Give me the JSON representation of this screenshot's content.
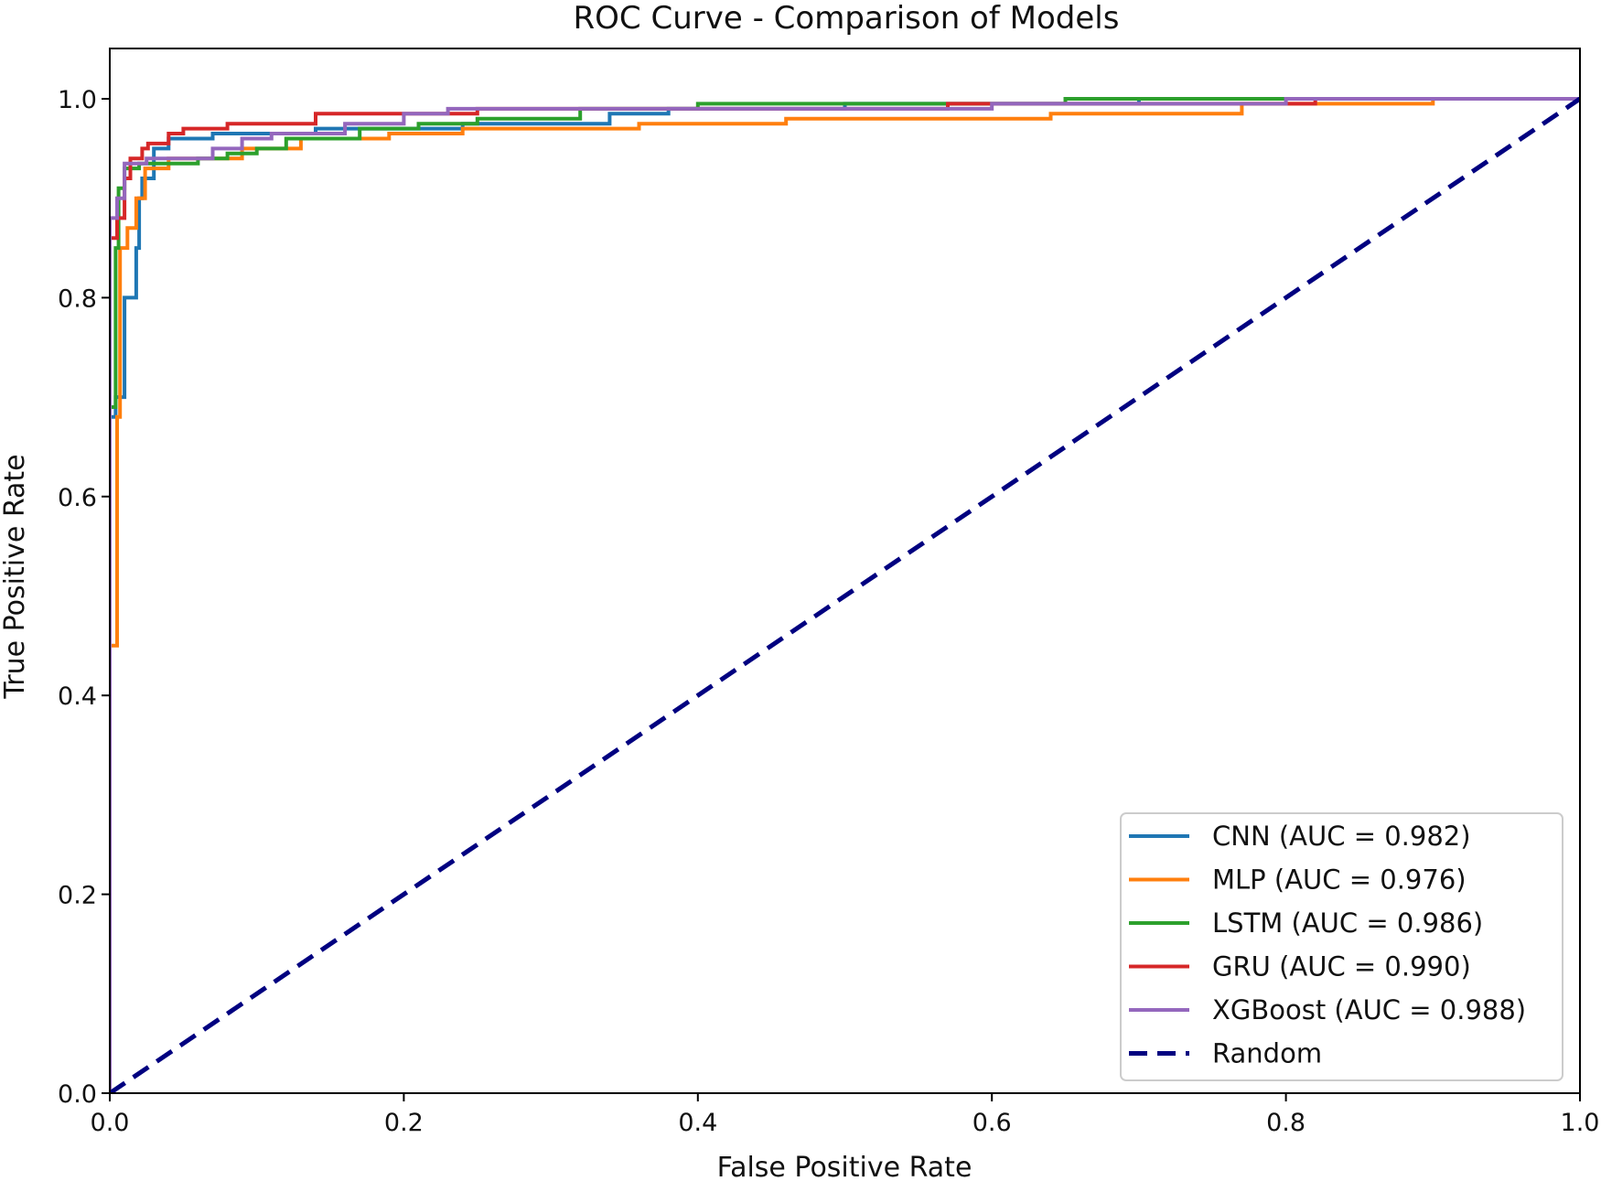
{
  "chart_data": {
    "type": "line",
    "title": "ROC Curve - Comparison of Models",
    "xlabel": "False Positive Rate",
    "ylabel": "True Positive Rate",
    "xlim": [
      0.0,
      1.0
    ],
    "ylim": [
      0.0,
      1.0
    ],
    "xticks": [
      "0.0",
      "0.2",
      "0.4",
      "0.6",
      "0.8",
      "1.0"
    ],
    "yticks": [
      "0.0",
      "0.2",
      "0.4",
      "0.6",
      "0.8",
      "1.0"
    ],
    "grid": false,
    "legend_location": "lower-right",
    "series": [
      {
        "name": "CNN",
        "label": "CNN (AUC = 0.982)",
        "auc": 0.982,
        "color": "#1f77b4",
        "style": "solid",
        "points": [
          [
            0,
            0
          ],
          [
            0,
            0.68
          ],
          [
            0.004,
            0.68
          ],
          [
            0.004,
            0.7
          ],
          [
            0.01,
            0.7
          ],
          [
            0.01,
            0.8
          ],
          [
            0.015,
            0.8
          ],
          [
            0.015,
            0.8
          ],
          [
            0.018,
            0.8
          ],
          [
            0.018,
            0.85
          ],
          [
            0.02,
            0.85
          ],
          [
            0.02,
            0.9
          ],
          [
            0.022,
            0.9
          ],
          [
            0.022,
            0.92
          ],
          [
            0.03,
            0.92
          ],
          [
            0.03,
            0.95
          ],
          [
            0.04,
            0.95
          ],
          [
            0.04,
            0.96
          ],
          [
            0.07,
            0.96
          ],
          [
            0.07,
            0.965
          ],
          [
            0.14,
            0.965
          ],
          [
            0.14,
            0.97
          ],
          [
            0.24,
            0.97
          ],
          [
            0.24,
            0.975
          ],
          [
            0.34,
            0.975
          ],
          [
            0.34,
            0.985
          ],
          [
            0.38,
            0.985
          ],
          [
            0.38,
            0.99
          ],
          [
            0.5,
            0.99
          ],
          [
            0.5,
            0.995
          ],
          [
            0.7,
            0.995
          ],
          [
            0.7,
            1.0
          ],
          [
            1.0,
            1.0
          ]
        ]
      },
      {
        "name": "MLP",
        "label": "MLP (AUC = 0.976)",
        "auc": 0.976,
        "color": "#ff7f0e",
        "style": "solid",
        "points": [
          [
            0,
            0
          ],
          [
            0,
            0.45
          ],
          [
            0.005,
            0.45
          ],
          [
            0.005,
            0.68
          ],
          [
            0.007,
            0.68
          ],
          [
            0.007,
            0.85
          ],
          [
            0.012,
            0.85
          ],
          [
            0.012,
            0.87
          ],
          [
            0.018,
            0.87
          ],
          [
            0.018,
            0.9
          ],
          [
            0.024,
            0.9
          ],
          [
            0.024,
            0.93
          ],
          [
            0.04,
            0.93
          ],
          [
            0.04,
            0.94
          ],
          [
            0.09,
            0.94
          ],
          [
            0.09,
            0.95
          ],
          [
            0.13,
            0.95
          ],
          [
            0.13,
            0.96
          ],
          [
            0.19,
            0.96
          ],
          [
            0.19,
            0.965
          ],
          [
            0.24,
            0.965
          ],
          [
            0.24,
            0.97
          ],
          [
            0.36,
            0.97
          ],
          [
            0.36,
            0.975
          ],
          [
            0.46,
            0.975
          ],
          [
            0.46,
            0.98
          ],
          [
            0.64,
            0.98
          ],
          [
            0.64,
            0.985
          ],
          [
            0.77,
            0.985
          ],
          [
            0.77,
            0.995
          ],
          [
            0.9,
            0.995
          ],
          [
            0.9,
            1.0
          ],
          [
            1.0,
            1.0
          ]
        ]
      },
      {
        "name": "LSTM",
        "label": "LSTM (AUC = 0.986)",
        "auc": 0.986,
        "color": "#2ca02c",
        "style": "solid",
        "points": [
          [
            0,
            0
          ],
          [
            0,
            0.69
          ],
          [
            0.004,
            0.69
          ],
          [
            0.004,
            0.85
          ],
          [
            0.006,
            0.85
          ],
          [
            0.006,
            0.91
          ],
          [
            0.01,
            0.91
          ],
          [
            0.01,
            0.93
          ],
          [
            0.02,
            0.93
          ],
          [
            0.02,
            0.935
          ],
          [
            0.06,
            0.935
          ],
          [
            0.06,
            0.94
          ],
          [
            0.08,
            0.94
          ],
          [
            0.08,
            0.945
          ],
          [
            0.1,
            0.945
          ],
          [
            0.1,
            0.95
          ],
          [
            0.12,
            0.95
          ],
          [
            0.12,
            0.96
          ],
          [
            0.17,
            0.96
          ],
          [
            0.17,
            0.97
          ],
          [
            0.21,
            0.97
          ],
          [
            0.21,
            0.975
          ],
          [
            0.25,
            0.975
          ],
          [
            0.25,
            0.98
          ],
          [
            0.32,
            0.98
          ],
          [
            0.32,
            0.99
          ],
          [
            0.4,
            0.99
          ],
          [
            0.4,
            0.995
          ],
          [
            0.65,
            0.995
          ],
          [
            0.65,
            1.0
          ],
          [
            1.0,
            1.0
          ]
        ]
      },
      {
        "name": "GRU",
        "label": "GRU (AUC = 0.990)",
        "auc": 0.99,
        "color": "#d62728",
        "style": "solid",
        "points": [
          [
            0,
            0
          ],
          [
            0,
            0.86
          ],
          [
            0.005,
            0.86
          ],
          [
            0.005,
            0.88
          ],
          [
            0.01,
            0.88
          ],
          [
            0.01,
            0.92
          ],
          [
            0.014,
            0.92
          ],
          [
            0.014,
            0.94
          ],
          [
            0.022,
            0.94
          ],
          [
            0.022,
            0.95
          ],
          [
            0.026,
            0.95
          ],
          [
            0.026,
            0.955
          ],
          [
            0.04,
            0.955
          ],
          [
            0.04,
            0.965
          ],
          [
            0.05,
            0.965
          ],
          [
            0.05,
            0.97
          ],
          [
            0.08,
            0.97
          ],
          [
            0.08,
            0.975
          ],
          [
            0.14,
            0.975
          ],
          [
            0.14,
            0.985
          ],
          [
            0.25,
            0.985
          ],
          [
            0.25,
            0.99
          ],
          [
            0.57,
            0.99
          ],
          [
            0.57,
            0.995
          ],
          [
            0.82,
            0.995
          ],
          [
            0.82,
            1.0
          ],
          [
            1.0,
            1.0
          ]
        ]
      },
      {
        "name": "XGBoost",
        "label": "XGBoost (AUC = 0.988)",
        "auc": 0.988,
        "color": "#9467bd",
        "style": "solid",
        "points": [
          [
            0,
            0
          ],
          [
            0,
            0.88
          ],
          [
            0.005,
            0.88
          ],
          [
            0.005,
            0.9
          ],
          [
            0.01,
            0.9
          ],
          [
            0.01,
            0.935
          ],
          [
            0.025,
            0.935
          ],
          [
            0.025,
            0.94
          ],
          [
            0.07,
            0.94
          ],
          [
            0.07,
            0.95
          ],
          [
            0.09,
            0.95
          ],
          [
            0.09,
            0.96
          ],
          [
            0.11,
            0.96
          ],
          [
            0.11,
            0.965
          ],
          [
            0.16,
            0.965
          ],
          [
            0.16,
            0.975
          ],
          [
            0.2,
            0.975
          ],
          [
            0.2,
            0.985
          ],
          [
            0.23,
            0.985
          ],
          [
            0.23,
            0.99
          ],
          [
            0.6,
            0.99
          ],
          [
            0.6,
            0.995
          ],
          [
            0.8,
            0.995
          ],
          [
            0.8,
            1.0
          ],
          [
            1.0,
            1.0
          ]
        ]
      },
      {
        "name": "Random",
        "label": "Random",
        "color": "#000080",
        "style": "dashed",
        "points": [
          [
            0,
            0
          ],
          [
            1,
            1
          ]
        ]
      }
    ]
  }
}
